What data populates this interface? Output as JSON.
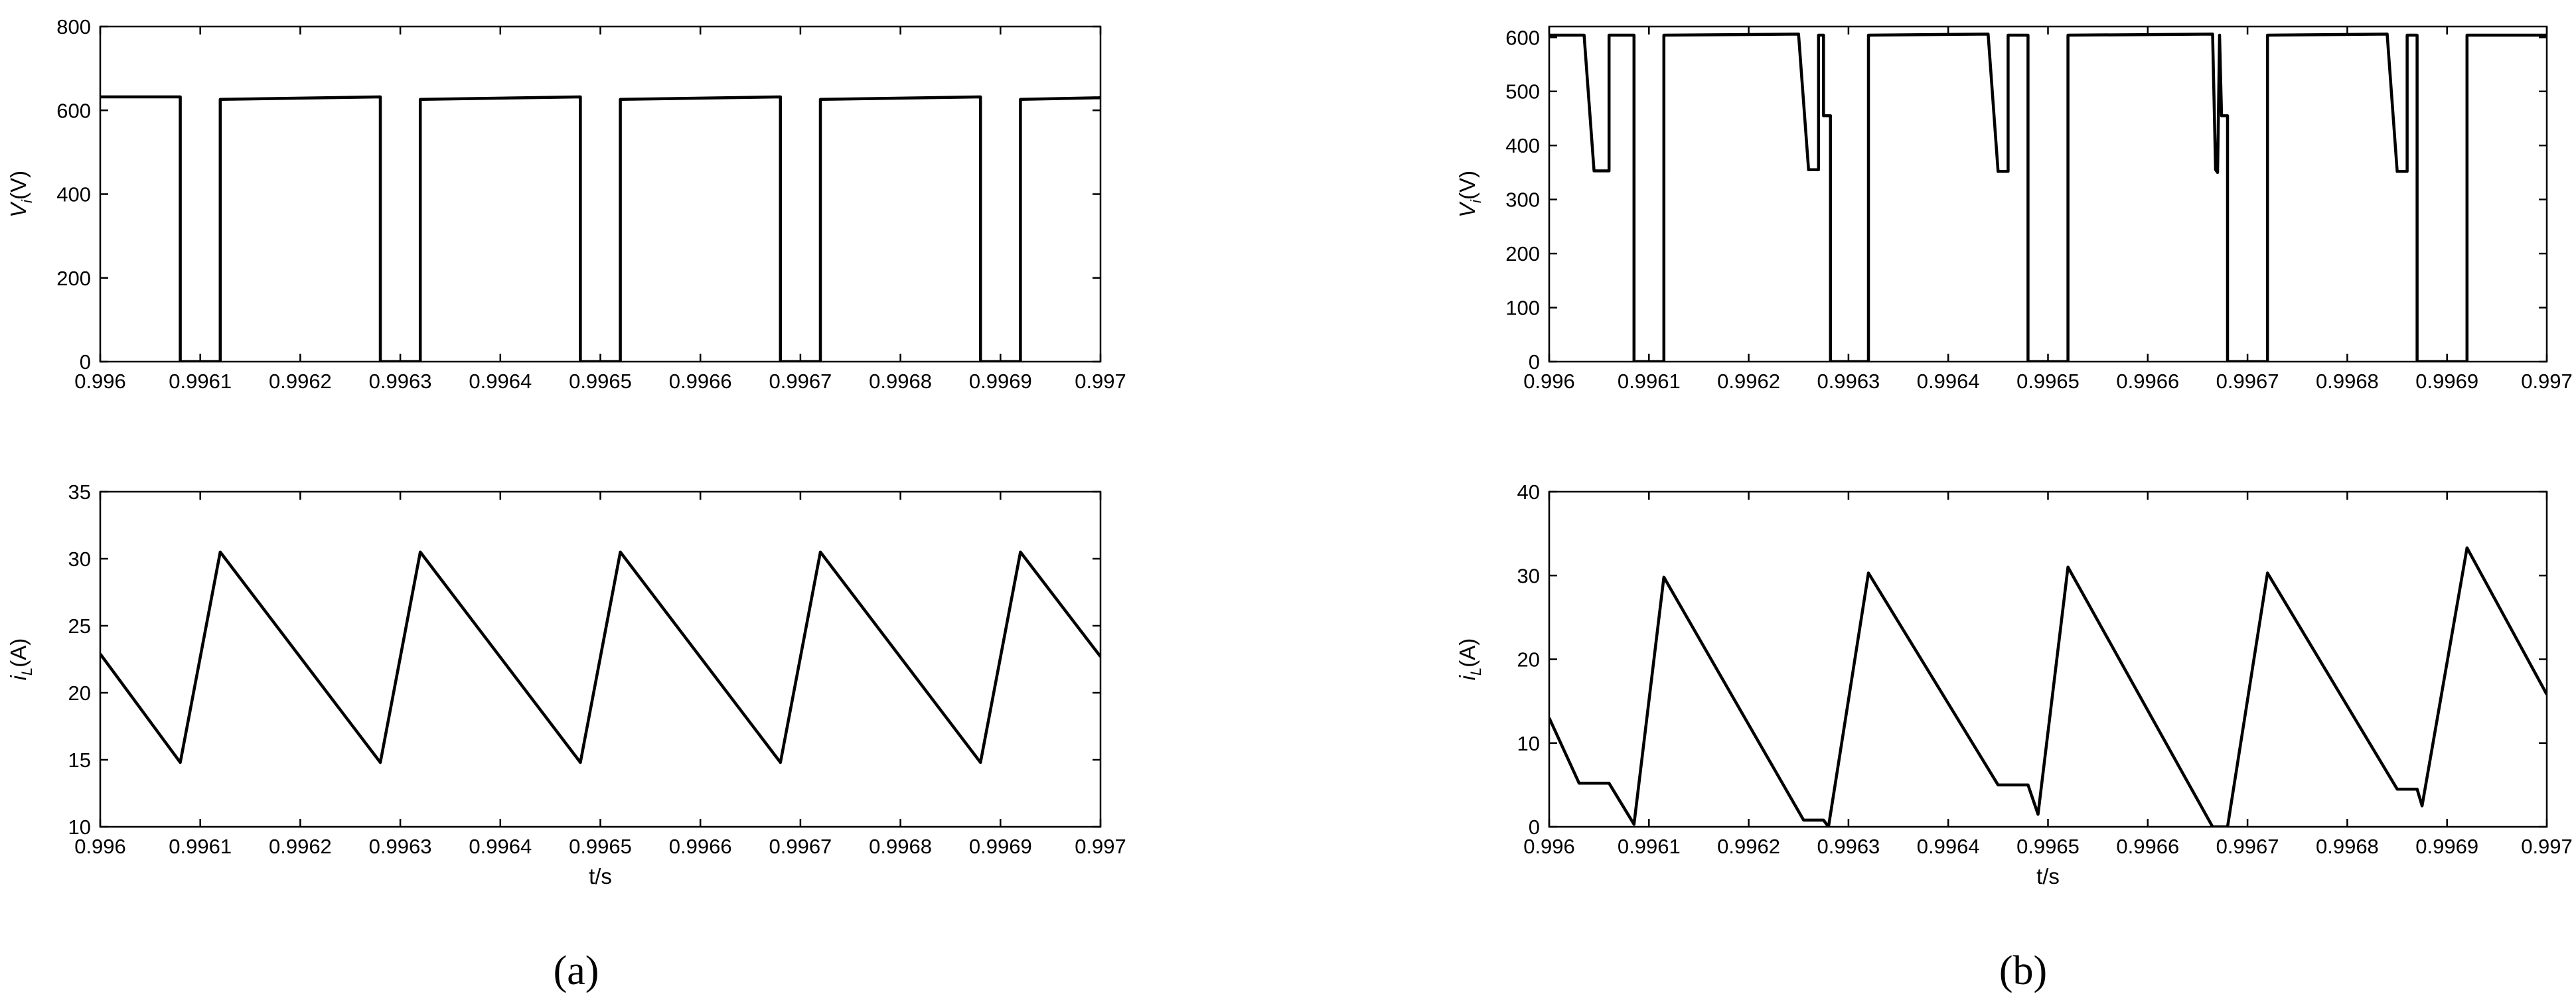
{
  "chart_data": [
    {
      "type": "line",
      "panel": "a",
      "xlabel": "",
      "ylabel_main": "V",
      "ylabel_sub": "i",
      "ylabel_unit": "(V)",
      "xlim": [
        0.996,
        0.997
      ],
      "ylim": [
        0,
        800
      ],
      "xticks": [
        "0.996",
        "0.9961",
        "0.9962",
        "0.9963",
        "0.9964",
        "0.9965",
        "0.9966",
        "0.9967",
        "0.9968",
        "0.9969",
        "0.997"
      ],
      "yticks": [
        "0",
        "200",
        "400",
        "600",
        "800"
      ],
      "series": [
        {
          "x": [
            0.996,
            0.99608,
            0.99608,
            0.99612,
            0.99612,
            0.99628,
            0.99628,
            0.99632,
            0.99632,
            0.99648,
            0.99648,
            0.99652,
            0.99652,
            0.99668,
            0.99668,
            0.99672,
            0.99672,
            0.99688,
            0.99688,
            0.99692,
            0.99692,
            0.997
          ],
          "y": [
            632,
            632,
            0,
            0,
            626,
            632,
            0,
            0,
            626,
            632,
            0,
            0,
            626,
            632,
            0,
            0,
            626,
            632,
            0,
            0,
            626,
            630
          ]
        }
      ]
    },
    {
      "type": "line",
      "panel": "a",
      "xlabel": "t/s",
      "ylabel_main": "i",
      "ylabel_sub": "L",
      "ylabel_unit": "(A)",
      "xlim": [
        0.996,
        0.997
      ],
      "ylim": [
        10,
        35
      ],
      "xticks": [
        "0.996",
        "0.9961",
        "0.9962",
        "0.9963",
        "0.9964",
        "0.9965",
        "0.9966",
        "0.9967",
        "0.9968",
        "0.9969",
        "0.997"
      ],
      "yticks": [
        "10",
        "15",
        "20",
        "25",
        "30",
        "35"
      ],
      "series": [
        {
          "x": [
            0.996,
            0.99608,
            0.99612,
            0.99628,
            0.99632,
            0.99648,
            0.99652,
            0.99668,
            0.99672,
            0.99688,
            0.99692,
            0.997
          ],
          "y": [
            22.9,
            14.8,
            30.5,
            14.8,
            30.5,
            14.8,
            30.5,
            14.8,
            30.5,
            14.8,
            30.5,
            22.7
          ]
        }
      ]
    },
    {
      "type": "line",
      "panel": "b",
      "xlabel": "",
      "ylabel_main": "V",
      "ylabel_sub": "i",
      "ylabel_unit": "(V)",
      "xlim": [
        0.996,
        0.997
      ],
      "ylim": [
        0,
        620
      ],
      "xticks": [
        "0.996",
        "0.9961",
        "0.9962",
        "0.9963",
        "0.9964",
        "0.9965",
        "0.9966",
        "0.9967",
        "0.9968",
        "0.9969",
        "0.997"
      ],
      "yticks": [
        "0",
        "100",
        "200",
        "300",
        "400",
        "500",
        "600"
      ],
      "series": [
        {
          "x": [
            0.996,
            0.996035,
            0.996045,
            0.99606,
            0.99606,
            0.99608,
            0.99608,
            0.996085,
            0.996085,
            0.996115,
            0.996115,
            0.99625,
            0.99626,
            0.99627,
            0.99627,
            0.996275,
            0.996275,
            0.996282,
            0.996282,
            0.996285,
            0.996285,
            0.99632,
            0.99632,
            0.99644,
            0.99645,
            0.99646,
            0.99646,
            0.99648,
            0.99648,
            0.99649,
            0.99649,
            0.99652,
            0.99652,
            0.996665,
            0.996668,
            0.99667,
            0.996672,
            0.996674,
            0.996674,
            0.99668,
            0.99668,
            0.996684,
            0.996684,
            0.99672,
            0.99672,
            0.99684,
            0.99685,
            0.99686,
            0.99686,
            0.99687,
            0.99687,
            0.996875,
            0.996875,
            0.99692,
            0.99692,
            0.997
          ],
          "y": [
            604,
            604,
            353,
            353,
            604,
            604,
            604,
            604,
            0,
            0,
            604,
            606,
            355,
            355,
            604,
            604,
            455,
            455,
            0,
            0,
            0,
            0,
            604,
            606,
            352,
            352,
            604,
            604,
            0,
            0,
            0,
            0,
            604,
            606,
            355,
            350,
            604,
            455,
            455,
            455,
            0,
            0,
            0,
            0,
            604,
            606,
            352,
            352,
            604,
            604,
            0,
            0,
            0,
            0,
            604,
            604
          ]
        }
      ]
    },
    {
      "type": "line",
      "panel": "b",
      "xlabel": "t/s",
      "ylabel_main": "i",
      "ylabel_sub": "L",
      "ylabel_unit": "(A)",
      "xlim": [
        0.996,
        0.997
      ],
      "ylim": [
        0,
        40
      ],
      "xticks": [
        "0.996",
        "0.9961",
        "0.9962",
        "0.9963",
        "0.9964",
        "0.9965",
        "0.9966",
        "0.9967",
        "0.9968",
        "0.9969",
        "0.997"
      ],
      "yticks": [
        "0",
        "10",
        "20",
        "30",
        "40"
      ],
      "series": [
        {
          "x": [
            0.996,
            0.99603,
            0.99606,
            0.996085,
            0.996115,
            0.996255,
            0.996275,
            0.99628,
            0.99632,
            0.99645,
            0.99648,
            0.99649,
            0.99652,
            0.996665,
            0.996675,
            0.99668,
            0.99672,
            0.99685,
            0.99687,
            0.996875,
            0.99692,
            0.997
          ],
          "y": [
            13,
            5.2,
            5.2,
            0.3,
            29.8,
            0.8,
            0.8,
            0,
            30.3,
            5,
            5,
            1.5,
            31,
            0,
            0,
            0,
            30.3,
            4.5,
            4.5,
            2.5,
            33.3,
            15.8
          ]
        }
      ]
    }
  ],
  "panel_labels": [
    "(a)",
    "(b)"
  ]
}
